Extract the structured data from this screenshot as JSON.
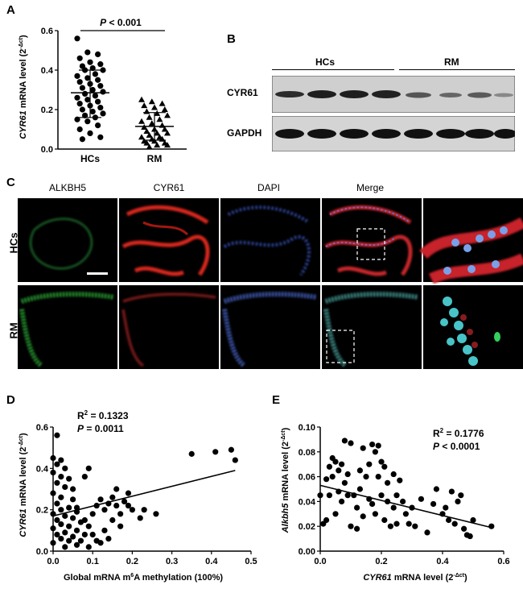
{
  "panels": {
    "a": "A",
    "b": "B",
    "c": "C",
    "d": "D",
    "e": "E"
  },
  "panel_a": {
    "ylabel_gene": "CYR61",
    "ylabel_rest": " mRNA level (2",
    "ylabel_sup": "-Δct",
    "ylabel_close": ")",
    "sig_p": "P",
    "sig_rest": " < 0.001",
    "categories": [
      "HCs",
      "RM"
    ],
    "yticks": [
      "0.0",
      "0.2",
      "0.4",
      "0.6"
    ]
  },
  "panel_b": {
    "groups": [
      "HCs",
      "RM"
    ],
    "rows": [
      "CYR61",
      "GAPDH"
    ]
  },
  "panel_c": {
    "columns": [
      "ALKBH5",
      "CYR61",
      "DAPI",
      "Merge"
    ],
    "rows": [
      "HCs",
      "RM"
    ]
  },
  "panel_d": {
    "r2_label": "R",
    "r2_sup": "2",
    "r2_value": " = 0.1323",
    "p_label": "P",
    "p_value": "  = 0.0011",
    "ylabel_gene": "CYR61",
    "ylabel_rest": " mRNA level (2",
    "ylabel_sup": "-Δct",
    "ylabel_close": ")",
    "xlabel_pre": "Global mRNA m",
    "xlabel_sup": "6",
    "xlabel_post": "A methylation (100%)",
    "xticks": [
      "0.0",
      "0.1",
      "0.2",
      "0.3",
      "0.4",
      "0.5"
    ],
    "yticks": [
      "0.0",
      "0.2",
      "0.4",
      "0.6"
    ]
  },
  "panel_e": {
    "r2_label": "R",
    "r2_sup": "2",
    "r2_value": " = 0.1776",
    "p_label": "P",
    "p_value": "  < 0.0001",
    "ylabel_gene": "Alkbh5",
    "ylabel_rest": " mRNA level (2",
    "ylabel_sup": "-Δct",
    "ylabel_close": ")",
    "xlabel_gene": "CYR61",
    "xlabel_rest": " mRNA level (2",
    "xlabel_sup": "-Δct",
    "xlabel_close": ")",
    "xticks": [
      "0.0",
      "0.2",
      "0.4",
      "0.6"
    ],
    "yticks": [
      "0.00",
      "0.02",
      "0.04",
      "0.06",
      "0.08",
      "0.10"
    ]
  },
  "chart_data": [
    {
      "type": "scatter",
      "panel": "A",
      "categories": [
        "HCs",
        "RM"
      ],
      "ylim": [
        0,
        0.6
      ],
      "series": [
        {
          "name": "HCs",
          "values": [
            0.56,
            0.49,
            0.48,
            0.46,
            0.44,
            0.43,
            0.42,
            0.41,
            0.4,
            0.4,
            0.38,
            0.37,
            0.36,
            0.35,
            0.34,
            0.33,
            0.32,
            0.31,
            0.3,
            0.29,
            0.28,
            0.27,
            0.26,
            0.25,
            0.24,
            0.23,
            0.22,
            0.21,
            0.2,
            0.19,
            0.18,
            0.17,
            0.16,
            0.15,
            0.14,
            0.12,
            0.1,
            0.08,
            0.06,
            0.05
          ],
          "mean": 0.285,
          "sd_low": 0.16,
          "sd_high": 0.4
        },
        {
          "name": "RM",
          "values": [
            0.25,
            0.24,
            0.23,
            0.22,
            0.21,
            0.2,
            0.19,
            0.18,
            0.17,
            0.16,
            0.15,
            0.14,
            0.13,
            0.12,
            0.11,
            0.1,
            0.1,
            0.09,
            0.08,
            0.08,
            0.07,
            0.06,
            0.06,
            0.05,
            0.05,
            0.04,
            0.04,
            0.03,
            0.03,
            0.02,
            0.02,
            0.01
          ],
          "mean": 0.115,
          "sd_low": 0.045,
          "sd_high": 0.185
        }
      ]
    },
    {
      "type": "scatter",
      "panel": "D",
      "xlim": [
        0,
        0.5
      ],
      "ylim": [
        0,
        0.6
      ],
      "points": [
        [
          0.01,
          0.56
        ],
        [
          0.0,
          0.45
        ],
        [
          0.02,
          0.44
        ],
        [
          0.01,
          0.42
        ],
        [
          0.03,
          0.4
        ],
        [
          0.0,
          0.38
        ],
        [
          0.02,
          0.36
        ],
        [
          0.04,
          0.35
        ],
        [
          0.01,
          0.33
        ],
        [
          0.03,
          0.31
        ],
        [
          0.0,
          0.28
        ],
        [
          0.02,
          0.26
        ],
        [
          0.05,
          0.25
        ],
        [
          0.01,
          0.23
        ],
        [
          0.04,
          0.21
        ],
        [
          0.02,
          0.2
        ],
        [
          0.06,
          0.19
        ],
        [
          0.0,
          0.18
        ],
        [
          0.03,
          0.17
        ],
        [
          0.05,
          0.16
        ],
        [
          0.01,
          0.15
        ],
        [
          0.07,
          0.14
        ],
        [
          0.02,
          0.13
        ],
        [
          0.04,
          0.12
        ],
        [
          0.0,
          0.11
        ],
        [
          0.06,
          0.1
        ],
        [
          0.03,
          0.09
        ],
        [
          0.01,
          0.08
        ],
        [
          0.05,
          0.07
        ],
        [
          0.02,
          0.06
        ],
        [
          0.04,
          0.05
        ],
        [
          0.0,
          0.04
        ],
        [
          0.06,
          0.03
        ],
        [
          0.03,
          0.02
        ],
        [
          0.08,
          0.08
        ],
        [
          0.09,
          0.12
        ],
        [
          0.1,
          0.18
        ],
        [
          0.11,
          0.22
        ],
        [
          0.12,
          0.25
        ],
        [
          0.08,
          0.36
        ],
        [
          0.09,
          0.4
        ],
        [
          0.11,
          0.05
        ],
        [
          0.13,
          0.2
        ],
        [
          0.14,
          0.23
        ],
        [
          0.15,
          0.26
        ],
        [
          0.13,
          0.1
        ],
        [
          0.16,
          0.22
        ],
        [
          0.17,
          0.18
        ],
        [
          0.18,
          0.24
        ],
        [
          0.19,
          0.22
        ],
        [
          0.2,
          0.2
        ],
        [
          0.15,
          0.15
        ],
        [
          0.14,
          0.06
        ],
        [
          0.1,
          0.08
        ],
        [
          0.12,
          0.04
        ],
        [
          0.17,
          0.12
        ],
        [
          0.08,
          0.15
        ],
        [
          0.09,
          0.02
        ],
        [
          0.22,
          0.16
        ],
        [
          0.23,
          0.2
        ],
        [
          0.26,
          0.18
        ],
        [
          0.35,
          0.47
        ],
        [
          0.41,
          0.48
        ],
        [
          0.45,
          0.49
        ],
        [
          0.46,
          0.44
        ],
        [
          0.19,
          0.28
        ],
        [
          0.16,
          0.3
        ],
        [
          0.07,
          0.05
        ],
        [
          0.05,
          0.3
        ],
        [
          0.06,
          0.21
        ]
      ],
      "regression": {
        "x": [
          0.0,
          0.46
        ],
        "y": [
          0.17,
          0.39
        ]
      }
    },
    {
      "type": "scatter",
      "panel": "E",
      "xlim": [
        0,
        0.6
      ],
      "ylim": [
        0,
        0.1
      ],
      "points": [
        [
          0.0,
          0.045
        ],
        [
          0.01,
          0.022
        ],
        [
          0.02,
          0.058
        ],
        [
          0.02,
          0.025
        ],
        [
          0.03,
          0.068
        ],
        [
          0.03,
          0.045
        ],
        [
          0.04,
          0.075
        ],
        [
          0.04,
          0.06
        ],
        [
          0.05,
          0.072
        ],
        [
          0.05,
          0.03
        ],
        [
          0.06,
          0.065
        ],
        [
          0.06,
          0.048
        ],
        [
          0.07,
          0.07
        ],
        [
          0.07,
          0.04
        ],
        [
          0.08,
          0.089
        ],
        [
          0.08,
          0.055
        ],
        [
          0.09,
          0.062
        ],
        [
          0.1,
          0.087
        ],
        [
          0.1,
          0.02
        ],
        [
          0.11,
          0.045
        ],
        [
          0.12,
          0.035
        ],
        [
          0.12,
          0.018
        ],
        [
          0.13,
          0.05
        ],
        [
          0.14,
          0.028
        ],
        [
          0.14,
          0.083
        ],
        [
          0.15,
          0.06
        ],
        [
          0.16,
          0.07
        ],
        [
          0.16,
          0.042
        ],
        [
          0.17,
          0.038
        ],
        [
          0.17,
          0.086
        ],
        [
          0.18,
          0.08
        ],
        [
          0.18,
          0.03
        ],
        [
          0.19,
          0.085
        ],
        [
          0.19,
          0.06
        ],
        [
          0.2,
          0.072
        ],
        [
          0.2,
          0.045
        ],
        [
          0.21,
          0.025
        ],
        [
          0.21,
          0.068
        ],
        [
          0.22,
          0.04
        ],
        [
          0.22,
          0.055
        ],
        [
          0.23,
          0.02
        ],
        [
          0.24,
          0.062
        ],
        [
          0.24,
          0.035
        ],
        [
          0.25,
          0.045
        ],
        [
          0.25,
          0.022
        ],
        [
          0.26,
          0.057
        ],
        [
          0.27,
          0.04
        ],
        [
          0.28,
          0.03
        ],
        [
          0.3,
          0.035
        ],
        [
          0.31,
          0.02
        ],
        [
          0.33,
          0.042
        ],
        [
          0.35,
          0.015
        ],
        [
          0.37,
          0.038
        ],
        [
          0.38,
          0.05
        ],
        [
          0.4,
          0.03
        ],
        [
          0.41,
          0.035
        ],
        [
          0.42,
          0.025
        ],
        [
          0.43,
          0.048
        ],
        [
          0.44,
          0.022
        ],
        [
          0.45,
          0.04
        ],
        [
          0.46,
          0.045
        ],
        [
          0.47,
          0.018
        ],
        [
          0.48,
          0.013
        ],
        [
          0.49,
          0.012
        ],
        [
          0.5,
          0.025
        ],
        [
          0.56,
          0.02
        ],
        [
          0.09,
          0.045
        ],
        [
          0.13,
          0.065
        ],
        [
          0.29,
          0.022
        ]
      ],
      "regression": {
        "x": [
          0.0,
          0.56
        ],
        "y": [
          0.053,
          0.019
        ]
      }
    }
  ]
}
